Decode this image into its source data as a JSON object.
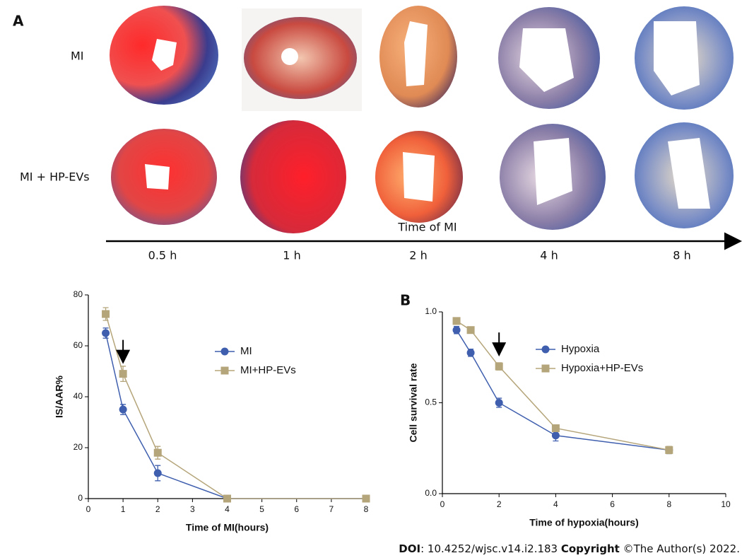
{
  "panel_a": {
    "label": "A",
    "row_labels": [
      "MI",
      "MI + HP-EVs"
    ],
    "axis_title": "Time of MI",
    "time_labels": [
      "0.5 h",
      "1 h",
      "2 h",
      "4 h",
      "8 h"
    ]
  },
  "chart_data": [
    {
      "type": "line",
      "x_label": "Time of MI(hours)",
      "y_label": "IS/AAR%",
      "x": [
        0.5,
        1,
        2,
        4,
        8
      ],
      "series": [
        {
          "name": "MI",
          "color": "#3f5fae",
          "marker": "circle",
          "values": [
            65,
            35,
            10,
            0,
            0
          ],
          "errors": [
            2,
            2,
            3,
            0.5,
            0.5
          ]
        },
        {
          "name": "MI+HP-EVs",
          "color": "#b5a57a",
          "marker": "square",
          "values": [
            72.5,
            49,
            18,
            0,
            0
          ],
          "errors": [
            2.5,
            3,
            2.5,
            0.5,
            0.5
          ]
        }
      ],
      "xlim": [
        0,
        8
      ],
      "xticks": [
        0,
        1,
        2,
        3,
        4,
        5,
        6,
        7,
        8
      ],
      "ylim": [
        0,
        80
      ],
      "yticks": [
        0,
        20,
        40,
        60,
        80
      ],
      "annotation_arrow_x": 1
    },
    {
      "type": "line",
      "panel_label": "B",
      "x_label": "Time of hypoxia(hours)",
      "y_label": "Cell survival rate",
      "x": [
        0.5,
        1,
        2,
        4,
        8
      ],
      "series": [
        {
          "name": "Hypoxia",
          "color": "#3f5fae",
          "marker": "circle",
          "values": [
            0.9,
            0.775,
            0.5,
            0.32,
            0.24
          ],
          "errors": [
            0.02,
            0.02,
            0.025,
            0.03,
            0.02
          ]
        },
        {
          "name": "Hypoxia+HP-EVs",
          "color": "#b5a57a",
          "marker": "square",
          "values": [
            0.95,
            0.9,
            0.7,
            0.36,
            0.24
          ],
          "errors": [
            0.01,
            0.01,
            0.02,
            0.015,
            0.02
          ]
        }
      ],
      "xlim": [
        0,
        10
      ],
      "xticks": [
        0,
        2,
        4,
        6,
        8,
        10
      ],
      "ylim": [
        0,
        1
      ],
      "yticks": [
        {
          "value": 0,
          "label": "0.0"
        },
        {
          "value": 0.5,
          "label": "0.5"
        },
        {
          "value": 1,
          "label": "1.0"
        }
      ],
      "annotation_arrow_x": 2
    }
  ],
  "footer": {
    "doi_label": "DOI",
    "doi": ": 10.4252/wjsc.v14.i2.183 ",
    "copyright_label": "Copyright",
    "copyright": " ©The Author(s) 2022."
  }
}
